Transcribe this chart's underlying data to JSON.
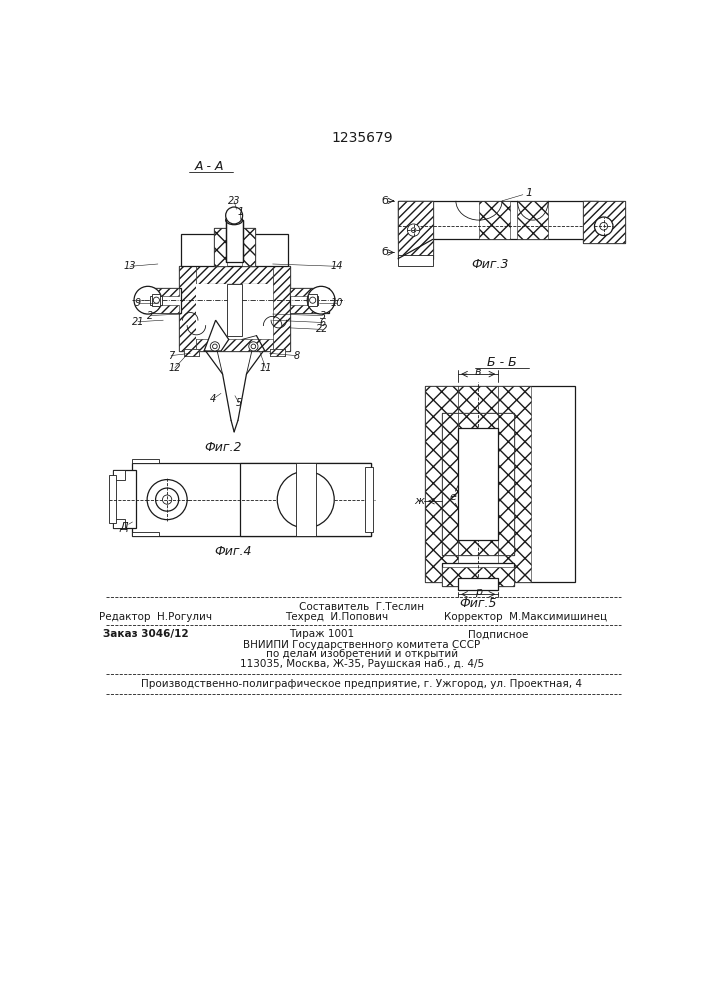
{
  "title": "1235679",
  "fig2_label": "Фиг.2",
  "fig3_label": "Фиг.3",
  "fig4_label": "Фиг.4",
  "fig5_label": "Фиг.5",
  "section_aa": "А - А",
  "section_bb": "Б - Б",
  "lbl_b": "б",
  "lbl_B": "в",
  "lbl_e": "е",
  "lbl_zh": "ж",
  "lbl_r": "р",
  "lbl_D": "Д",
  "footer_line1": "Составитель  Г.Теслин",
  "footer_line2_left": "Редактор  Н.Рогулич",
  "footer_line2_mid": "Техред  И.Попович",
  "footer_line2_right": "Корректор  М.Максимишинец",
  "footer_line3_left": "Заказ 3046/12",
  "footer_line3_mid": "Тираж 1001",
  "footer_line3_right": "Подписное",
  "footer_line4": "ВНИИПИ Государственного комитета СССР",
  "footer_line5": "по делам изобретений и открытий",
  "footer_line6": "113035, Москва, Ж-35, Раушская наб., д. 4/5",
  "footer_line7": "Производственно-полиграфическое предприятие, г. Ужгород, ул. Проектная, 4"
}
